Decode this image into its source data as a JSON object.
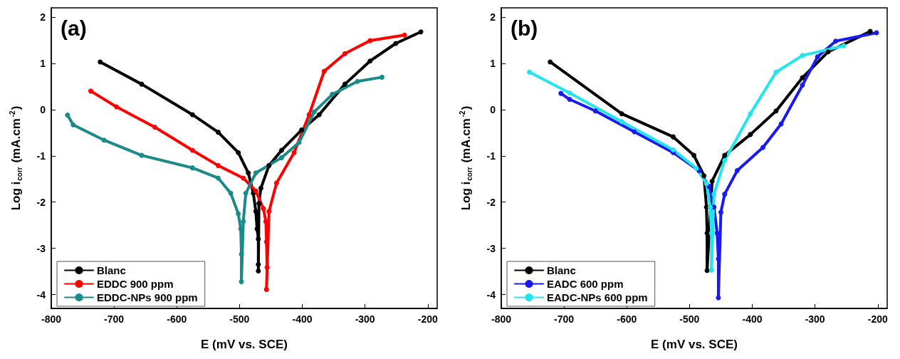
{
  "chart_data": [
    {
      "type": "line",
      "title": "(a)",
      "xlabel": "E (mV vs. SCE)",
      "ylabel": "Log i$_{corr}$ (mA.cm$^{-2}$)",
      "xlim": [
        -800,
        -185
      ],
      "ylim": [
        -4.3,
        2.2
      ],
      "xticks": [
        -800,
        -700,
        -600,
        -500,
        -400,
        -300,
        -200
      ],
      "yticks": [
        -4,
        -3,
        -2,
        -1,
        0,
        1,
        2
      ],
      "grid": false,
      "legend": "bottom left",
      "marker": "circle",
      "line_style": "solid",
      "series": [
        {
          "name": "Blanc",
          "color": "#000000",
          "x": [
            -722,
            -656,
            -575,
            -534,
            -502,
            -486,
            -478,
            -474,
            -472,
            -470,
            -470,
            -470,
            -469,
            -466,
            -453,
            -433,
            -401,
            -373,
            -332,
            -292,
            -251,
            -211
          ],
          "values": [
            1.03,
            0.55,
            -0.11,
            -0.49,
            -0.93,
            -1.37,
            -1.81,
            -2.2,
            -2.58,
            -2.8,
            -3.35,
            -3.49,
            -2.03,
            -1.7,
            -1.21,
            -0.88,
            -0.44,
            -0.11,
            0.55,
            1.05,
            1.43,
            1.68
          ]
        },
        {
          "name": "EDDC 900 ppm",
          "color": "#ff0000",
          "x": [
            -737,
            -696,
            -635,
            -575,
            -534,
            -494,
            -474,
            -462,
            -458,
            -457,
            -456,
            -457,
            -453,
            -441,
            -413,
            -389,
            -365,
            -332,
            -292,
            -237
          ],
          "values": [
            0.4,
            0.06,
            -0.38,
            -0.88,
            -1.21,
            -1.48,
            -1.76,
            -2.14,
            -2.42,
            -2.86,
            -3.41,
            -3.89,
            -2.2,
            -1.59,
            -0.93,
            -0.11,
            0.83,
            1.21,
            1.49,
            1.61
          ]
        },
        {
          "name": "EDDC-NPs 900 ppm",
          "color": "#1a8a8a",
          "x": [
            -774,
            -765,
            -716,
            -656,
            -575,
            -534,
            -514,
            -502,
            -498,
            -497,
            -497,
            -494,
            -490,
            -474,
            -433,
            -405,
            -381,
            -352,
            -312,
            -273
          ],
          "values": [
            -0.12,
            -0.33,
            -0.66,
            -0.99,
            -1.26,
            -1.48,
            -1.81,
            -2.25,
            -2.58,
            -3.13,
            -3.72,
            -2.42,
            -1.81,
            -1.37,
            -1.04,
            -0.71,
            -0.05,
            0.33,
            0.61,
            0.7
          ]
        }
      ]
    },
    {
      "type": "line",
      "title": "(b)",
      "xlabel": "E (mV vs. SCE)",
      "ylabel": "Log i$_{corr}$ (mA.cm$^{-2}$)",
      "xlim": [
        -800,
        -185
      ],
      "ylim": [
        -4.3,
        2.2
      ],
      "xticks": [
        -800,
        -700,
        -600,
        -500,
        -400,
        -300,
        -200
      ],
      "yticks": [
        -4,
        -3,
        -2,
        -1,
        0,
        1,
        2
      ],
      "grid": false,
      "legend": "bottom left",
      "marker": "circle",
      "line_style": "solid",
      "series": [
        {
          "name": "Blanc",
          "color": "#000000",
          "x": [
            -722,
            -608,
            -526,
            -493,
            -477,
            -473,
            -472,
            -472,
            -464,
            -444,
            -403,
            -362,
            -320,
            -279,
            -212
          ],
          "values": [
            1.03,
            -0.09,
            -0.59,
            -0.99,
            -1.43,
            -2.11,
            -2.67,
            -3.48,
            -1.55,
            -0.99,
            -0.54,
            -0.03,
            0.69,
            1.25,
            1.69
          ]
        },
        {
          "name": "EADC 600 ppm",
          "color": "#1a1aee",
          "x": [
            -705,
            -691,
            -650,
            -588,
            -526,
            -485,
            -469,
            -461,
            -456,
            -454,
            -454,
            -450,
            -444,
            -424,
            -383,
            -354,
            -320,
            -296,
            -267,
            -202
          ],
          "values": [
            0.35,
            0.22,
            -0.03,
            -0.48,
            -0.93,
            -1.32,
            -1.66,
            -2.11,
            -2.67,
            -3.23,
            -4.07,
            -2.22,
            -1.83,
            -1.32,
            -0.82,
            -0.31,
            0.53,
            1.14,
            1.48,
            1.66
          ]
        },
        {
          "name": "EADC-NPs 600 ppm",
          "color": "#22e5ee",
          "x": [
            -755,
            -691,
            -608,
            -526,
            -489,
            -473,
            -467,
            -465,
            -465,
            -461,
            -444,
            -403,
            -362,
            -320,
            -254
          ],
          "values": [
            0.81,
            0.36,
            -0.26,
            -0.87,
            -1.27,
            -1.6,
            -2.11,
            -2.67,
            -3.47,
            -1.83,
            -1.1,
            -0.09,
            0.81,
            1.17,
            1.38
          ]
        }
      ]
    }
  ]
}
